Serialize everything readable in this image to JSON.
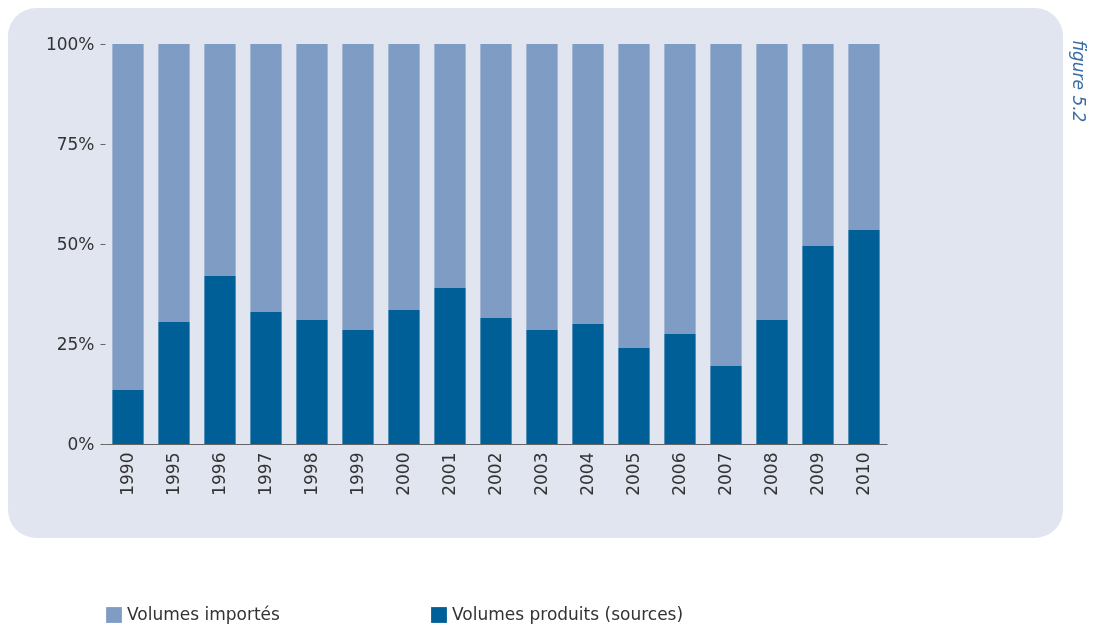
{
  "chart_data": {
    "type": "bar",
    "stacked": true,
    "categories": [
      "1990",
      "1995",
      "1996",
      "1997",
      "1998",
      "1999",
      "2000",
      "2001",
      "2002",
      "2003",
      "2004",
      "2005",
      "2006",
      "2007",
      "2008",
      "2009",
      "2010"
    ],
    "series": [
      {
        "name": "Volumes produits (sources)",
        "color": "#005f96",
        "values": [
          13.5,
          30.5,
          42,
          33,
          31,
          28.5,
          33.5,
          39,
          31.5,
          28.5,
          30,
          24,
          27.5,
          19.5,
          31,
          49.5,
          53.5
        ]
      },
      {
        "name": "Volumes importés",
        "color": "#7f9dc4",
        "values": [
          86.5,
          69.5,
          58,
          67,
          69,
          71.5,
          66.5,
          61,
          68.5,
          71.5,
          70,
          76,
          72.5,
          80.5,
          69,
          50.5,
          46.5
        ]
      }
    ],
    "ylim": [
      0,
      100
    ],
    "yticks": [
      {
        "value": 0,
        "label": "0%"
      },
      {
        "value": 25,
        "label": "25%"
      },
      {
        "value": 50,
        "label": "50%"
      },
      {
        "value": 75,
        "label": "75%"
      },
      {
        "value": 100,
        "label": "100%"
      }
    ],
    "grid": false,
    "legend": "bottom",
    "annotations": [
      "figure 5.2"
    ]
  }
}
